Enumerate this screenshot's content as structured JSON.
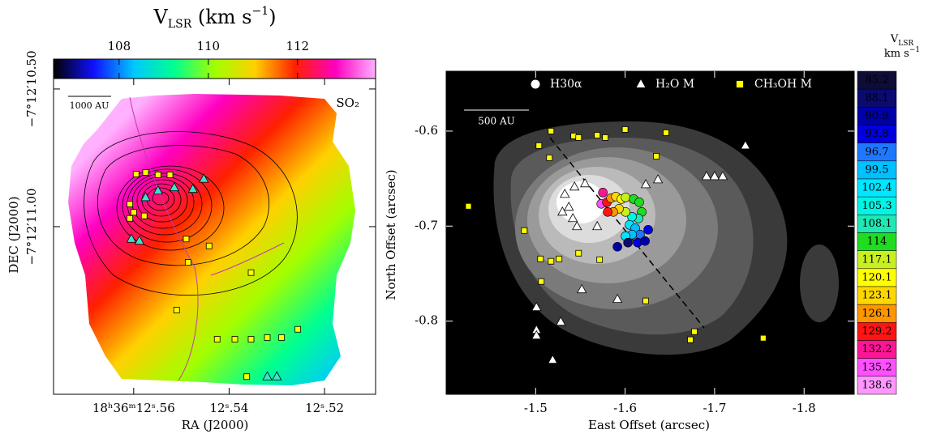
{
  "chart_data": [
    {
      "type": "scatter",
      "colorbar": {
        "title": [
          "V",
          "LSR",
          " (km s",
          "−1",
          ")"
        ],
        "lim": [
          106.53,
          113.75
        ],
        "ticks": [
          108,
          110,
          112
        ],
        "colors": [
          "#000000",
          "#1010ff",
          "#00c8ff",
          "#00ff90",
          "#a0ff00",
          "#ffd000",
          "#ff2000",
          "#ff00c0",
          "#ffb0ff"
        ]
      },
      "xlabel": "RA (J2000)",
      "ylabel": "DEC (J2000)",
      "xlim": [
        12.5768,
        12.5093
      ],
      "ylim": [
        11.609,
        10.462
      ],
      "xticks": [
        {
          "value": 12.56,
          "label": "18ʰ36ᵐ12ˢ.56"
        },
        {
          "value": 12.54,
          "label": "12ˢ.54"
        },
        {
          "value": 12.52,
          "label": "12ˢ.52"
        }
      ],
      "yticks": [
        {
          "value": 10.5,
          "label": "−7°12′10.50"
        },
        {
          "value": 11.0,
          "label": "−7°12′11.00"
        }
      ],
      "scalebar": "1000 AU",
      "tracer": "SO₂",
      "series": [
        {
          "marker": "square",
          "color": "#ffff00",
          "x": [
            12.5595,
            12.5575,
            12.5549,
            12.5524,
            12.5608,
            12.56,
            12.5578,
            12.5608,
            12.549,
            12.5442,
            12.5354,
            12.5486,
            12.551,
            12.5425,
            12.5388,
            12.5354,
            12.532,
            12.529,
            12.5256,
            12.5363
          ],
          "y": [
            10.809,
            10.803,
            10.812,
            10.812,
            10.918,
            10.948,
            10.961,
            10.97,
            11.045,
            11.07,
            11.167,
            11.13,
            11.303,
            11.409,
            11.409,
            11.409,
            11.403,
            11.403,
            11.373,
            11.545
          ]
        },
        {
          "marker": "triangle",
          "color": "#40e0d0",
          "x": [
            12.5575,
            12.5549,
            12.5515,
            12.5476,
            12.5453,
            12.5605,
            12.5588,
            12.532,
            12.53
          ],
          "y": [
            10.894,
            10.87,
            10.858,
            10.864,
            10.827,
            11.045,
            11.052,
            11.545,
            11.545
          ]
        }
      ]
    },
    {
      "type": "scatter",
      "colorbar": {
        "title": [
          [
            "V",
            "LSR"
          ],
          [
            "km s",
            "−1"
          ]
        ],
        "levels": [
          85.2,
          88.1,
          90.9,
          93.8,
          96.7,
          99.5,
          102.4,
          105.3,
          108.1,
          114,
          117.1,
          120.1,
          123.1,
          126.1,
          129.2,
          132.2,
          135.2,
          138.6
        ],
        "colors": [
          "#0d0d38",
          "#0a0a70",
          "#0000a8",
          "#0000e0",
          "#1e78ff",
          "#00c0ff",
          "#00e6ff",
          "#00f5e6",
          "#20e8b4",
          "#20dc20",
          "#c8f020",
          "#ffff00",
          "#ffd700",
          "#ff9600",
          "#ff1414",
          "#ff1496",
          "#ff50ff",
          "#ff96ff"
        ]
      },
      "xlabel": "East Offset (arcsec)",
      "ylabel": "North Offset (arcsec)",
      "xlim": [
        -1.4,
        -1.856
      ],
      "ylim": [
        -0.877,
        -0.537
      ],
      "xticks": [
        -1.5,
        -1.6,
        -1.7,
        -1.8
      ],
      "yticks": [
        -0.6,
        -0.7,
        -0.8
      ],
      "scalebar": "500 AU",
      "series": [
        {
          "name": "H30α",
          "marker": "circle",
          "color": "#ffffff",
          "x": [
            -1.5751,
            -1.5733,
            -1.5796,
            -1.5842,
            -1.5896,
            -1.5959,
            -1.6005,
            -1.6095,
            -1.6158,
            -1.6186,
            -1.6149,
            -1.6077,
            -1.6005,
            -1.5932,
            -1.5869,
            -1.5805,
            -1.605,
            -1.6113,
            -1.6167,
            -1.6077,
            -1.6005,
            -1.614,
            -1.6222,
            -1.5914,
            -1.6258,
            -1.6032
          ],
          "y": [
            -0.6647,
            -0.6766,
            -0.6749,
            -0.6706,
            -0.6689,
            -0.6715,
            -0.6698,
            -0.6715,
            -0.6749,
            -0.6851,
            -0.6919,
            -0.6902,
            -0.6851,
            -0.6817,
            -0.6851,
            -0.6851,
            -0.6987,
            -0.7021,
            -0.7089,
            -0.7089,
            -0.7106,
            -0.7174,
            -0.7157,
            -0.7217,
            -0.7038,
            -0.7174
          ],
          "velocity": [
            132.2,
            135.2,
            129.2,
            126.1,
            123.1,
            120.1,
            117.1,
            114,
            114,
            114,
            108.1,
            105.3,
            117.1,
            123.1,
            126.1,
            129.2,
            102.4,
            99.5,
            96.7,
            99.5,
            102.4,
            93.8,
            90.9,
            90.9,
            93.8,
            88.1
          ]
        },
        {
          "name": "H₂O M",
          "marker": "triangle",
          "color": "#ffffff",
          "x": [
            -1.5552,
            -1.5434,
            -1.5326,
            -1.5371,
            -1.5299,
            -1.5416,
            -1.5462,
            -1.5688,
            -1.6231,
            -1.6367,
            -1.5914,
            -1.691,
            -1.7,
            -1.7091,
            -1.7344,
            -1.5009,
            -1.5009,
            -1.5009,
            -1.5281,
            -1.519,
            -1.5516
          ],
          "y": [
            -0.6553,
            -0.6587,
            -0.6664,
            -0.68,
            -0.6851,
            -0.6919,
            -0.7004,
            -0.7004,
            -0.6562,
            -0.6511,
            -0.777,
            -0.6477,
            -0.6477,
            -0.6477,
            -0.6153,
            -0.7855,
            -0.8094,
            -0.8153,
            -0.8009,
            -0.8409,
            -0.7668
          ]
        },
        {
          "name": "CH₃OH M",
          "marker": "square",
          "color": "#ffff00",
          "x": [
            -1.5172,
            -1.5425,
            -1.548,
            -1.5688,
            -1.5778,
            -1.6,
            -1.6457,
            -1.6348,
            -1.5036,
            -1.5154,
            -1.4873,
            -1.5054,
            -1.5172,
            -1.5262,
            -1.548,
            -1.5715,
            -1.5063,
            -1.6231,
            -1.6774,
            -1.6729,
            -1.7543,
            -1.4249
          ],
          "y": [
            -0.6,
            -0.6051,
            -0.6068,
            -0.6043,
            -0.6068,
            -0.5983,
            -0.6017,
            -0.6264,
            -0.6153,
            -0.6281,
            -0.7047,
            -0.7345,
            -0.737,
            -0.7345,
            -0.7285,
            -0.7353,
            -0.7583,
            -0.7787,
            -0.8111,
            -0.8196,
            -0.8179,
            -0.6791
          ]
        }
      ]
    }
  ]
}
